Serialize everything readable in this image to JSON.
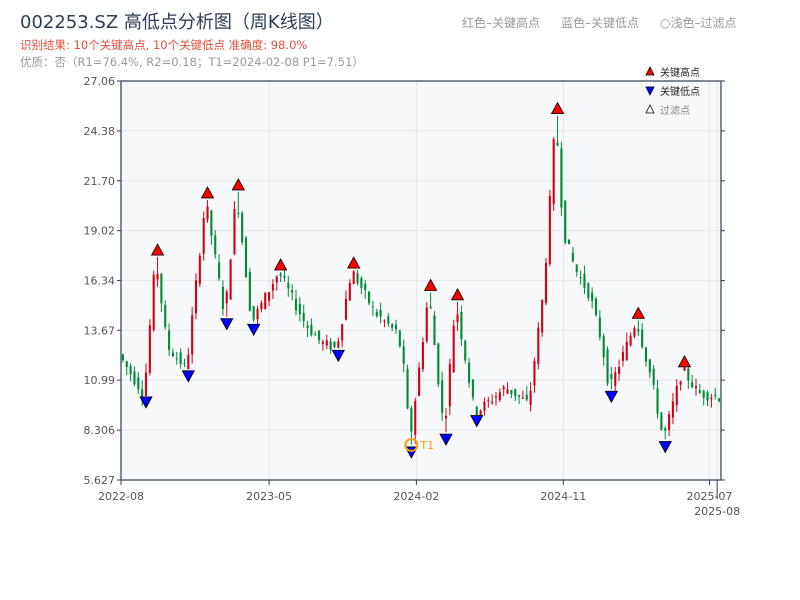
{
  "title": "002253.SZ 高低点分析图（周K线图）",
  "result_line": "识别结果: 10个关键高点, 10个关键低点  准确度: 98.0%",
  "quality_line": "优质：否（R1=76.4%, R2=0.18；T1=2024-02-08 P1=7.51）",
  "top_legend": {
    "red": "红色–关键高点",
    "blue": "蓝色–关键低点",
    "light": "○浅色–过滤点"
  },
  "chart_data": {
    "type": "candlestick",
    "ylim": [
      5.627,
      27.06
    ],
    "yticks": [
      "5.627",
      "8.306",
      "10.99",
      "13.67",
      "16.34",
      "19.02",
      "21.70",
      "24.38",
      "27.06"
    ],
    "xticks": [
      {
        "label": "2022-08",
        "week": 0
      },
      {
        "label": "2023-05",
        "week": 38.5
      },
      {
        "label": "2024-02",
        "week": 76.8
      },
      {
        "label": "2024-11",
        "week": 115
      },
      {
        "label": "2025-07",
        "week": 153
      },
      {
        "label": "2025-08",
        "week": 155
      }
    ],
    "weeks": 156,
    "legend": [
      "关键高点",
      "关键低点",
      "过滤点"
    ],
    "colors": {
      "up": "#d0021b",
      "down": "#008a3a",
      "high": "#ff0000",
      "low": "#0000ff",
      "t1": "#f39c12"
    },
    "price_path": [
      [
        0,
        12.2
      ],
      [
        6,
        10.2
      ],
      [
        9,
        17.6
      ],
      [
        12,
        12.8
      ],
      [
        17,
        11.6
      ],
      [
        22,
        20.67
      ],
      [
        27,
        14.4
      ],
      [
        30,
        21.1
      ],
      [
        34,
        14.1
      ],
      [
        41,
        16.8
      ],
      [
        48,
        14
      ],
      [
        52,
        13
      ],
      [
        56,
        12.7
      ],
      [
        60,
        16.9
      ],
      [
        66,
        14.6
      ],
      [
        72,
        13.5
      ],
      [
        74,
        11
      ],
      [
        75,
        7.51
      ],
      [
        80,
        15.7
      ],
      [
        84,
        8.2
      ],
      [
        87,
        15.2
      ],
      [
        92,
        9.2
      ],
      [
        100,
        10.6
      ],
      [
        106,
        9.7
      ],
      [
        110,
        16
      ],
      [
        113,
        25.2
      ],
      [
        115,
        19
      ],
      [
        118,
        17
      ],
      [
        122,
        15.5
      ],
      [
        125,
        13
      ],
      [
        127,
        10.5
      ],
      [
        134,
        14.2
      ],
      [
        138,
        11
      ],
      [
        141,
        7.8
      ],
      [
        146,
        11.6
      ],
      [
        150,
        10.3
      ],
      [
        155,
        10.1
      ]
    ],
    "key_highs": [
      {
        "week": 9,
        "price": 17.6
      },
      {
        "week": 22,
        "price": 20.67
      },
      {
        "week": 30,
        "price": 21.1
      },
      {
        "week": 41,
        "price": 16.8
      },
      {
        "week": 60,
        "price": 16.9
      },
      {
        "week": 80,
        "price": 15.7
      },
      {
        "week": 87,
        "price": 15.2
      },
      {
        "week": 113,
        "price": 25.2
      },
      {
        "week": 134,
        "price": 14.2
      },
      {
        "week": 146,
        "price": 11.6
      }
    ],
    "key_lows": [
      {
        "week": 6,
        "price": 10.2
      },
      {
        "week": 17,
        "price": 11.6
      },
      {
        "week": 27,
        "price": 14.4
      },
      {
        "week": 34,
        "price": 14.1
      },
      {
        "week": 56,
        "price": 12.7
      },
      {
        "week": 75,
        "price": 7.51
      },
      {
        "week": 84,
        "price": 8.2
      },
      {
        "week": 92,
        "price": 9.2
      },
      {
        "week": 127,
        "price": 10.5
      },
      {
        "week": 141,
        "price": 7.8
      }
    ],
    "t1": {
      "label": "T1",
      "week": 75,
      "price": 7.51
    }
  }
}
